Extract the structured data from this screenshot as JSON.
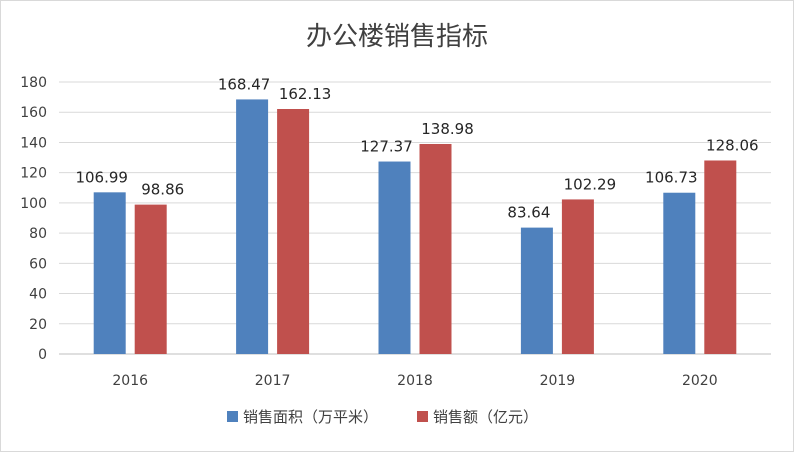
{
  "chart_data": {
    "type": "bar",
    "title": "办公楼销售指标",
    "categories": [
      "2016",
      "2017",
      "2018",
      "2019",
      "2020"
    ],
    "series": [
      {
        "name": "销售面积（万平米）",
        "values": [
          106.99,
          168.47,
          127.37,
          83.64,
          106.73
        ],
        "labels": [
          "106.99",
          "168.47",
          "127.37",
          "83.64",
          "106.73"
        ],
        "color": "#4f81bd"
      },
      {
        "name": "销售额（亿元）",
        "values": [
          98.86,
          162.13,
          138.98,
          102.29,
          128.06
        ],
        "labels": [
          "98.86",
          "162.13",
          "138.98",
          "102.29",
          "128.06"
        ],
        "color": "#c0504d"
      }
    ],
    "yticks": [
      "0",
      "20",
      "40",
      "60",
      "80",
      "100",
      "120",
      "140",
      "160",
      "180"
    ],
    "ylim": [
      0,
      180
    ],
    "grid": true,
    "legend_position": "bottom"
  }
}
